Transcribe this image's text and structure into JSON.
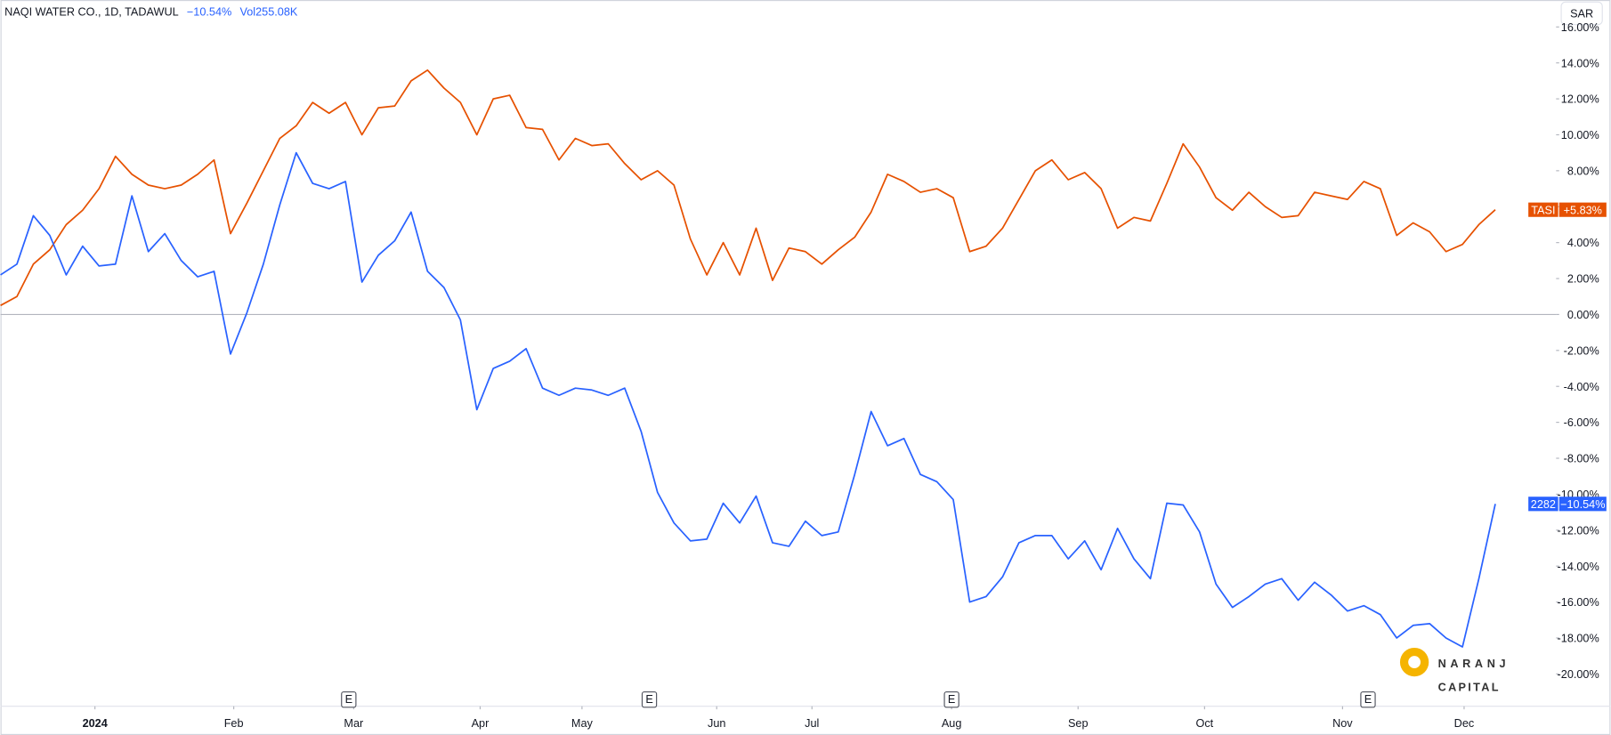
{
  "chart_data": {
    "type": "line",
    "title": "NAQI WATER CO., 1D, TADAWUL",
    "change": "−10.54%",
    "volume_label": "Vol",
    "volume": "255.08K",
    "currency": "SAR",
    "xlim": [
      0,
      94.7
    ],
    "xticks": [
      {
        "value": 5.75,
        "label": "2024"
      },
      {
        "value": 14.2,
        "label": "Feb"
      },
      {
        "value": 21.5,
        "label": "Mar"
      },
      {
        "value": 29.2,
        "label": "Apr"
      },
      {
        "value": 35.4,
        "label": "May"
      },
      {
        "value": 43.6,
        "label": "Jun"
      },
      {
        "value": 49.4,
        "label": "Jul"
      },
      {
        "value": 57.9,
        "label": "Aug"
      },
      {
        "value": 65.6,
        "label": "Sep"
      },
      {
        "value": 73.3,
        "label": "Oct"
      },
      {
        "value": 81.7,
        "label": "Nov"
      },
      {
        "value": 89.1,
        "label": "Dec"
      }
    ],
    "ylim": [
      -21.8,
      17.5
    ],
    "yticks": [
      {
        "value": -20,
        "label": "-20.00%"
      },
      {
        "value": -18,
        "label": "-18.00%"
      },
      {
        "value": -16,
        "label": "-16.00%"
      },
      {
        "value": -14,
        "label": "-14.00%"
      },
      {
        "value": -12,
        "label": "-12.00%"
      },
      {
        "value": -10,
        "label": "-10.00%"
      },
      {
        "value": -8,
        "label": "-8.00%"
      },
      {
        "value": -6,
        "label": "-6.00%"
      },
      {
        "value": -4,
        "label": "-4.00%"
      },
      {
        "value": -2,
        "label": "-2.00%"
      },
      {
        "value": 0,
        "label": "0.00%"
      },
      {
        "value": 2,
        "label": "2.00%"
      },
      {
        "value": 4,
        "label": "4.00%"
      },
      {
        "value": 6,
        "label": "6.00%"
      },
      {
        "value": 8,
        "label": "8.00%"
      },
      {
        "value": 10,
        "label": "10.00%"
      },
      {
        "value": 12,
        "label": "12.00%"
      },
      {
        "value": 14,
        "label": "14.00%"
      },
      {
        "value": 16,
        "label": "16.00%"
      }
    ],
    "grid": false,
    "baseline": 0,
    "series": [
      {
        "name": "TASI",
        "color": "#e65100",
        "end_label": "+5.83%",
        "values": [
          0.5,
          1.0,
          2.8,
          3.6,
          5.0,
          5.8,
          7.0,
          8.8,
          7.8,
          7.2,
          7.0,
          7.2,
          7.8,
          8.6,
          4.5,
          6.2,
          8.0,
          9.8,
          10.5,
          11.8,
          11.2,
          11.8,
          10.0,
          11.5,
          11.6,
          13.0,
          13.6,
          12.6,
          11.8,
          10.0,
          12.0,
          12.2,
          10.4,
          10.3,
          8.6,
          9.8,
          9.4,
          9.5,
          8.4,
          7.5,
          8.0,
          7.2,
          4.2,
          2.2,
          4.0,
          2.2,
          4.8,
          1.9,
          3.7,
          3.5,
          2.8,
          3.6,
          4.3,
          5.7,
          7.8,
          7.4,
          6.8,
          7.0,
          6.5,
          3.5,
          3.8,
          4.8,
          6.4,
          8.0,
          8.6,
          7.5,
          7.9,
          7.0,
          4.8,
          5.4,
          5.2,
          7.3,
          9.5,
          8.2,
          6.5,
          5.8,
          6.8,
          6.0,
          5.4,
          5.5,
          6.8,
          6.6,
          6.4,
          7.4,
          7.0,
          4.4,
          5.1,
          4.6,
          3.5,
          3.9,
          5.0,
          5.83
        ]
      },
      {
        "name": "2282",
        "color": "#2962ff",
        "end_label": "−10.54%",
        "values": [
          2.2,
          2.8,
          5.5,
          4.4,
          2.2,
          3.8,
          2.7,
          2.8,
          6.6,
          3.5,
          4.5,
          3.0,
          2.1,
          2.4,
          -2.2,
          0.1,
          2.8,
          6.1,
          9.0,
          7.3,
          7.0,
          7.4,
          1.8,
          3.3,
          4.1,
          5.7,
          2.4,
          1.5,
          -0.3,
          -5.3,
          -3.0,
          -2.6,
          -1.9,
          -4.1,
          -4.5,
          -4.1,
          -4.2,
          -4.5,
          -4.1,
          -6.5,
          -9.9,
          -11.6,
          -12.6,
          -12.5,
          -10.5,
          -11.6,
          -10.1,
          -12.7,
          -12.9,
          -11.5,
          -12.3,
          -12.1,
          -8.9,
          -5.4,
          -7.3,
          -6.9,
          -8.9,
          -9.3,
          -10.3,
          -16.0,
          -15.7,
          -14.6,
          -12.7,
          -12.3,
          -12.3,
          -13.6,
          -12.6,
          -14.2,
          -11.9,
          -13.6,
          -14.7,
          -10.5,
          -10.6,
          -12.1,
          -15.0,
          -16.3,
          -15.7,
          -15.0,
          -14.7,
          -15.9,
          -14.9,
          -15.6,
          -16.5,
          -16.2,
          -16.7,
          -18.0,
          -17.3,
          -17.2,
          -18.0,
          -18.5,
          -14.7,
          -10.54
        ]
      }
    ],
    "events": [
      {
        "x": 21.2,
        "label": "E"
      },
      {
        "x": 39.5,
        "label": "E"
      },
      {
        "x": 57.9,
        "label": "E"
      },
      {
        "x": 83.25,
        "label": "E"
      }
    ],
    "watermark": [
      "NARANJ",
      "CAPITAL"
    ]
  }
}
